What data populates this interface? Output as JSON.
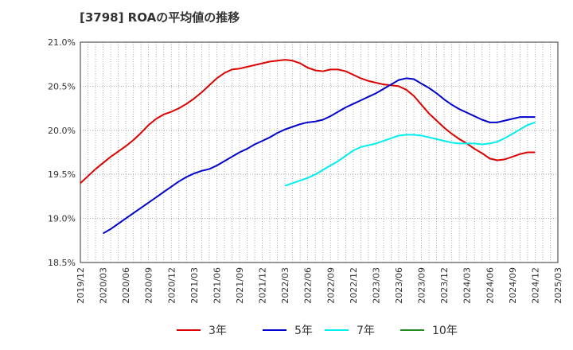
{
  "chart_data": {
    "type": "line",
    "title": "[3798]  ROAの平均値の推移",
    "xlabel": "",
    "ylabel": "",
    "x_ticks": [
      "2019/12",
      "2020/03",
      "2020/06",
      "2020/09",
      "2020/12",
      "2021/03",
      "2021/06",
      "2021/09",
      "2021/12",
      "2022/03",
      "2022/06",
      "2022/09",
      "2022/12",
      "2023/03",
      "2023/06",
      "2023/09",
      "2023/12",
      "2024/03",
      "2024/06",
      "2024/09",
      "2024/12",
      "2025/03"
    ],
    "y_ticks": [
      "18.5%",
      "19.0%",
      "19.5%",
      "20.0%",
      "20.5%",
      "21.0%"
    ],
    "ylim": [
      18.5,
      21.0
    ],
    "grid": true,
    "legend_position": "bottom",
    "series": [
      {
        "name": "3年",
        "color": "#dd0000",
        "x": [
          "2019/12",
          "2020/01",
          "2020/02",
          "2020/03",
          "2020/04",
          "2020/05",
          "2020/06",
          "2020/07",
          "2020/08",
          "2020/09",
          "2020/10",
          "2020/11",
          "2020/12",
          "2021/01",
          "2021/02",
          "2021/03",
          "2021/04",
          "2021/05",
          "2021/06",
          "2021/07",
          "2021/08",
          "2021/09",
          "2021/10",
          "2021/11",
          "2021/12",
          "2022/01",
          "2022/02",
          "2022/03",
          "2022/04",
          "2022/05",
          "2022/06",
          "2022/07",
          "2022/08",
          "2022/09",
          "2022/10",
          "2022/11",
          "2022/12",
          "2023/01",
          "2023/02",
          "2023/03",
          "2023/04",
          "2023/05",
          "2023/06",
          "2023/07",
          "2023/08",
          "2023/09",
          "2023/10",
          "2023/11",
          "2023/12",
          "2024/01",
          "2024/02",
          "2024/03",
          "2024/04",
          "2024/05",
          "2024/06",
          "2024/07",
          "2024/08",
          "2024/09",
          "2024/10",
          "2024/11",
          "2024/12"
        ],
        "values": [
          19.4,
          19.48,
          19.56,
          19.63,
          19.7,
          19.76,
          19.82,
          19.89,
          19.97,
          20.06,
          20.13,
          20.18,
          20.21,
          20.25,
          20.3,
          20.36,
          20.43,
          20.51,
          20.59,
          20.65,
          20.69,
          20.7,
          20.72,
          20.74,
          20.76,
          20.78,
          20.79,
          20.8,
          20.79,
          20.76,
          20.71,
          20.68,
          20.67,
          20.69,
          20.69,
          20.67,
          20.63,
          20.59,
          20.56,
          20.54,
          20.52,
          20.51,
          20.5,
          20.46,
          20.39,
          20.29,
          20.19,
          20.11,
          20.03,
          19.96,
          19.9,
          19.85,
          19.79,
          19.74,
          19.68,
          19.66,
          19.67,
          19.7,
          19.73,
          19.75,
          19.75
        ]
      },
      {
        "name": "5年",
        "color": "#0000cc",
        "x": [
          "2020/03",
          "2020/04",
          "2020/05",
          "2020/06",
          "2020/07",
          "2020/08",
          "2020/09",
          "2020/10",
          "2020/11",
          "2020/12",
          "2021/01",
          "2021/02",
          "2021/03",
          "2021/04",
          "2021/05",
          "2021/06",
          "2021/07",
          "2021/08",
          "2021/09",
          "2021/10",
          "2021/11",
          "2021/12",
          "2022/01",
          "2022/02",
          "2022/03",
          "2022/04",
          "2022/05",
          "2022/06",
          "2022/07",
          "2022/08",
          "2022/09",
          "2022/10",
          "2022/11",
          "2022/12",
          "2023/01",
          "2023/02",
          "2023/03",
          "2023/04",
          "2023/05",
          "2023/06",
          "2023/07",
          "2023/08",
          "2023/09",
          "2023/10",
          "2023/11",
          "2023/12",
          "2024/01",
          "2024/02",
          "2024/03",
          "2024/04",
          "2024/05",
          "2024/06",
          "2024/07",
          "2024/08",
          "2024/09",
          "2024/10",
          "2024/11",
          "2024/12"
        ],
        "values": [
          18.83,
          18.88,
          18.94,
          19.0,
          19.06,
          19.12,
          19.18,
          19.24,
          19.3,
          19.36,
          19.42,
          19.47,
          19.51,
          19.54,
          19.56,
          19.6,
          19.65,
          19.7,
          19.75,
          19.79,
          19.84,
          19.88,
          19.92,
          19.97,
          20.01,
          20.04,
          20.07,
          20.09,
          20.1,
          20.12,
          20.16,
          20.21,
          20.26,
          20.3,
          20.34,
          20.38,
          20.42,
          20.47,
          20.52,
          20.57,
          20.59,
          20.58,
          20.53,
          20.48,
          20.42,
          20.35,
          20.29,
          20.24,
          20.2,
          20.16,
          20.12,
          20.09,
          20.09,
          20.11,
          20.13,
          20.15,
          20.15,
          20.15
        ]
      },
      {
        "name": "7年",
        "color": "#00eeee",
        "x": [
          "2022/03",
          "2022/04",
          "2022/05",
          "2022/06",
          "2022/07",
          "2022/08",
          "2022/09",
          "2022/10",
          "2022/11",
          "2022/12",
          "2023/01",
          "2023/02",
          "2023/03",
          "2023/04",
          "2023/05",
          "2023/06",
          "2023/07",
          "2023/08",
          "2023/09",
          "2023/10",
          "2023/11",
          "2023/12",
          "2024/01",
          "2024/02",
          "2024/03",
          "2024/04",
          "2024/05",
          "2024/06",
          "2024/07",
          "2024/08",
          "2024/09",
          "2024/10",
          "2024/11",
          "2024/12"
        ],
        "values": [
          19.37,
          19.4,
          19.43,
          19.46,
          19.5,
          19.55,
          19.6,
          19.65,
          19.71,
          19.77,
          19.81,
          19.83,
          19.85,
          19.88,
          19.91,
          19.94,
          19.95,
          19.95,
          19.94,
          19.92,
          19.9,
          19.88,
          19.86,
          19.85,
          19.85,
          19.85,
          19.84,
          19.85,
          19.87,
          19.91,
          19.96,
          20.01,
          20.06,
          20.09
        ]
      },
      {
        "name": "10年",
        "color": "#228b22",
        "x": [],
        "values": []
      }
    ]
  }
}
